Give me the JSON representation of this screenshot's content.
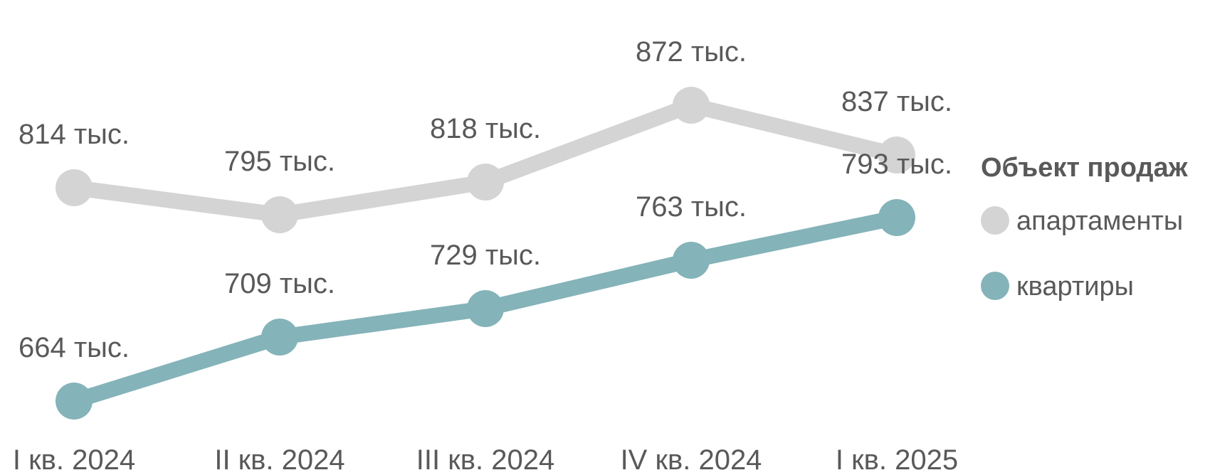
{
  "colors": {
    "apartments": "#D4D4D4",
    "flats": "#84B3B9",
    "text": "#595959"
  },
  "chart_data": {
    "type": "line",
    "title": "",
    "xlabel": "",
    "ylabel": "",
    "categories": [
      "I кв. 2024",
      "II кв. 2024",
      "III кв. 2024",
      "IV кв. 2024",
      "I кв. 2025"
    ],
    "ylim": [
      600,
      900
    ],
    "grid": false,
    "legend": {
      "title": "Объект продаж",
      "position": "right"
    },
    "series": [
      {
        "name": "апартаменты",
        "color": "#D4D4D4",
        "values": [
          814,
          795,
          818,
          872,
          837
        ],
        "labels": [
          "814 тыс.",
          "795 тыс.",
          "818 тыс.",
          "872 тыс.",
          "837 тыс."
        ]
      },
      {
        "name": "квартиры",
        "color": "#84B3B9",
        "values": [
          664,
          709,
          729,
          763,
          793
        ],
        "labels": [
          "664 тыс.",
          "709 тыс.",
          "729 тыс.",
          "763 тыс.",
          "793 тыс."
        ]
      }
    ]
  }
}
